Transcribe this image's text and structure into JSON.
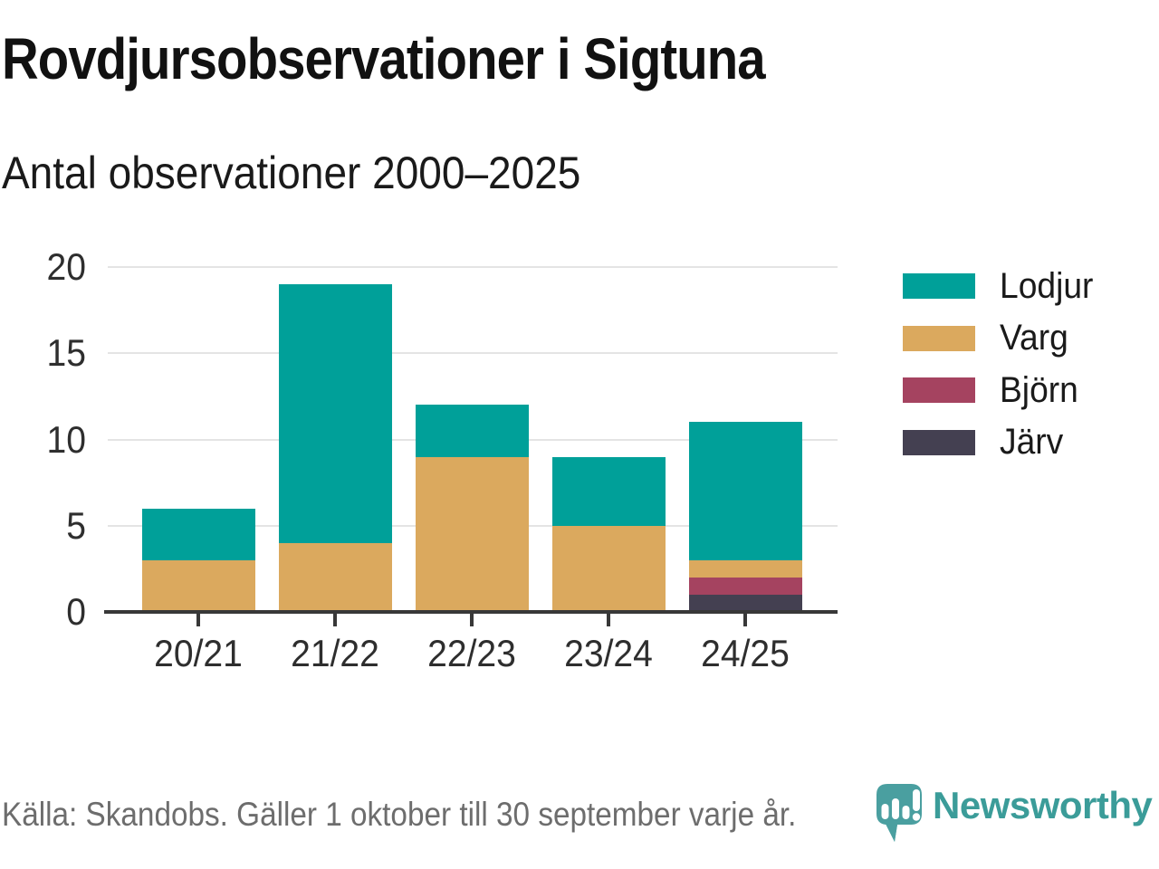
{
  "title": "Rovdjursobservationer i Sigtuna",
  "subtitle": "Antal observationer 2000–2025",
  "source": "Källa: Skandobs. Gäller 1 oktober till 30 september varje år.",
  "brand": "Newsworthy",
  "colors": {
    "lodjur": "#00a099",
    "varg": "#dba95e",
    "bjorn": "#a54360",
    "jarv": "#444051",
    "axis": "#383838",
    "grid": "#e4e4e4",
    "text": "#1a1a1a",
    "tick_text": "#2e2e2e",
    "muted_text": "#6d6d6d",
    "brand_teal": "#3b9c99",
    "logo_teal": "#4a9fa0"
  },
  "chart_data": {
    "type": "bar",
    "stacked": true,
    "title": "Rovdjursobservationer i Sigtuna",
    "subtitle": "Antal observationer 2000–2025",
    "categories": [
      "20/21",
      "21/22",
      "22/23",
      "23/24",
      "24/25"
    ],
    "series": [
      {
        "name": "Lodjur",
        "color": "#00a099",
        "values": [
          3,
          15,
          3,
          4,
          8
        ]
      },
      {
        "name": "Varg",
        "color": "#dba95e",
        "values": [
          3,
          4,
          9,
          5,
          1
        ]
      },
      {
        "name": "Björn",
        "color": "#a54360",
        "values": [
          0,
          0,
          0,
          0,
          1
        ]
      },
      {
        "name": "Järv",
        "color": "#444051",
        "values": [
          0,
          0,
          0,
          0,
          1
        ]
      }
    ],
    "stack_order_bottom_to_top": [
      "Järv",
      "Björn",
      "Varg",
      "Lodjur"
    ],
    "totals": [
      6,
      19,
      12,
      9,
      11
    ],
    "ylim": [
      0,
      20
    ],
    "yticks": [
      0,
      5,
      10,
      15,
      20
    ],
    "grid": "horizontal",
    "legend_position": "right",
    "xlabel": "",
    "ylabel": ""
  }
}
